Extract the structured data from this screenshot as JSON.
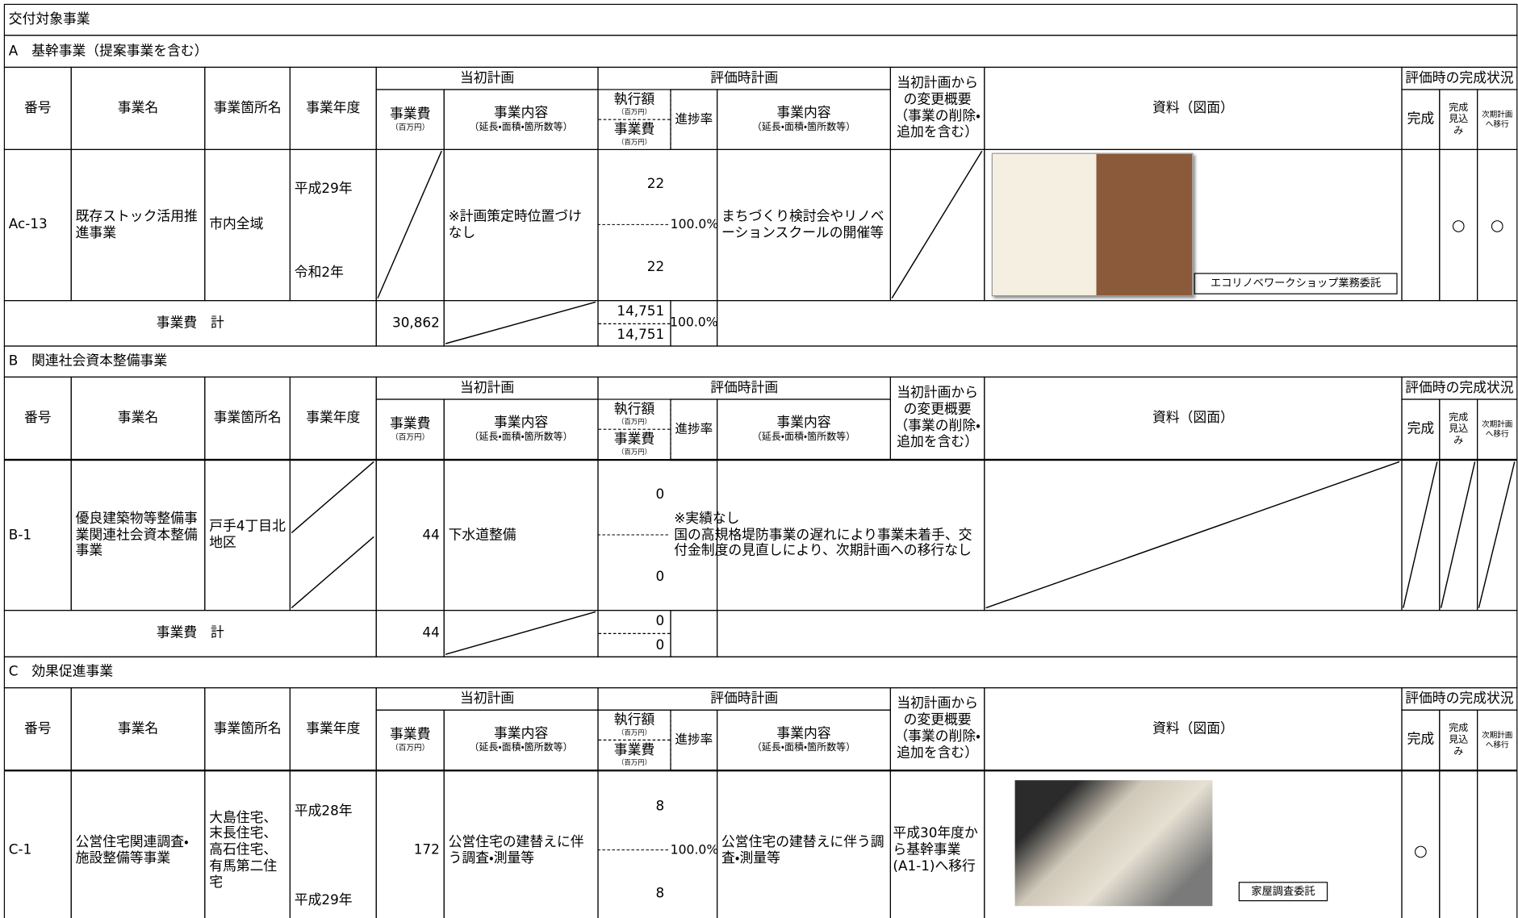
{
  "title": "交付対象事業",
  "header": {
    "no": "番号",
    "name": "事業名",
    "place": "事業箇所名",
    "year": "事業年度",
    "initial_plan": "当初計画",
    "cost": "事業費",
    "unit": "（百万円）",
    "content": "事業内容",
    "content_note": "（延長・面積・箇所数等）",
    "eval_plan": "評価時計画",
    "exec": "執行額",
    "progress": "進捗率",
    "change": "当初計画からの変更概要（事業の削除・追加を含む）",
    "material": "資料（図面）",
    "status": "評価時の完成状況",
    "done": "完成",
    "expected": "完成見込み",
    "next": "次期計画へ移行"
  },
  "sections": [
    {
      "label": "A　基幹事業（提案事業を含む）",
      "rows": [
        {
          "no": "Ac-13",
          "name": "既存ストック活用推進事業",
          "place": "市内全域",
          "year": [
            "平成29年",
            "令和2年"
          ],
          "cost": null,
          "content": "※計画策定時位置づけなし",
          "exec": "22",
          "cost2": "22",
          "progress": "100.0%",
          "eval": "まちづくり検討会やリノベーションスクールの開催等",
          "change": null,
          "caption": "エコリノベワークショップ業務委託",
          "expected": "○",
          "next": "○"
        }
      ],
      "total": {
        "label": "事業費　計",
        "cost": "30,862",
        "exec": "14,751",
        "cost2": "14,751",
        "progress": "100.0%"
      }
    },
    {
      "label": "B　関連社会資本整備事業",
      "rows": [
        {
          "no": "B-1",
          "name": "優良建築物等整備事業関連社会資本整備事業",
          "place": "戸手4丁目北地区",
          "year": null,
          "cost": "44",
          "content": "下水道整備",
          "exec": "0",
          "cost2": "0",
          "note": [
            "※実績なし",
            "国の高規格堤防事業の遅れにより事業未着手、交付金制度の見直しにより、次期計画への移行なし"
          ],
          "material": null,
          "done": null,
          "expected": null,
          "next": null
        }
      ],
      "total": {
        "label": "事業費　計",
        "cost": "44",
        "exec": "0",
        "cost2": "0"
      }
    },
    {
      "label": "C　効果促進事業",
      "rows": [
        {
          "no": "C-1",
          "name": "公営住宅関連調査・施設整備等事業",
          "place": "大島住宅、末長住宅、高石住宅、有馬第二住宅",
          "year": [
            "平成28年",
            "平成29年"
          ],
          "cost": "172",
          "content": "公営住宅の建替えに伴う調査・測量等",
          "exec": "8",
          "cost2": "8",
          "progress": "100.0%",
          "eval": "公営住宅の建替えに伴う調査・測量等",
          "change": "平成30年度から基幹事業(A1-1)へ移行",
          "caption": "家屋調査委託",
          "done": "○"
        }
      ]
    }
  ]
}
